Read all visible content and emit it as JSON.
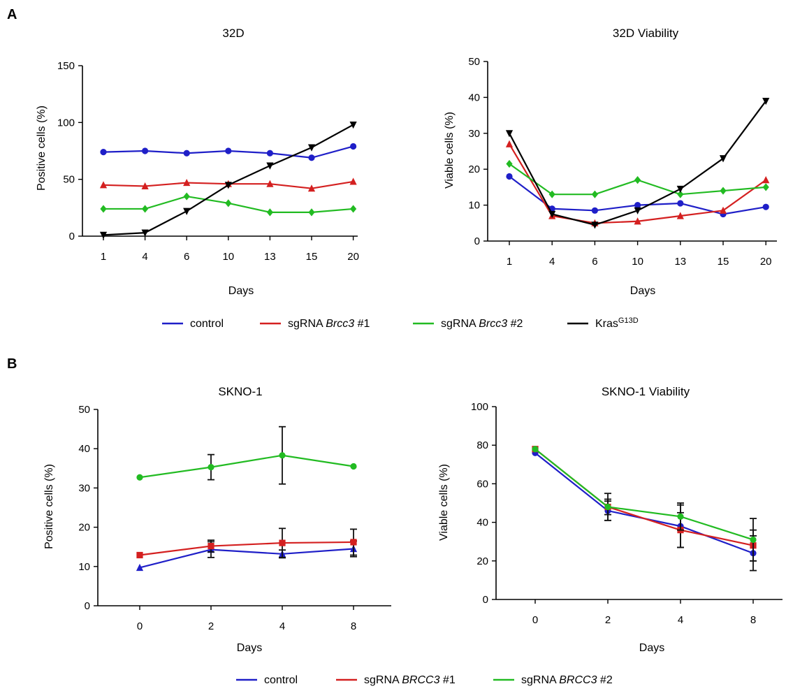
{
  "panels": {
    "a": "A",
    "b": "B"
  },
  "legends": {
    "a": [
      {
        "parts": [
          "control"
        ],
        "color": "#1f1fc8"
      },
      {
        "parts": [
          "sgRNA ",
          "Brcc3",
          " #1"
        ],
        "color": "#d42020"
      },
      {
        "parts": [
          "sgRNA ",
          "Brcc3",
          " #2"
        ],
        "color": "#22bb22"
      },
      {
        "parts": [
          "Kras",
          "G13D"
        ],
        "color": "#000000"
      }
    ],
    "b": [
      {
        "parts": [
          "control"
        ],
        "color": "#1f1fc8"
      },
      {
        "parts": [
          "sgRNA ",
          "BRCC3",
          " #1"
        ],
        "color": "#d42020"
      },
      {
        "parts": [
          "sgRNA ",
          "BRCC3",
          " #2"
        ],
        "color": "#22bb22"
      }
    ]
  },
  "chart_data": [
    {
      "type": "line",
      "title": "32D",
      "xlabel": "Days",
      "ylabel": "Positive cells (%)",
      "categories": [
        "1",
        "4",
        "6",
        "10",
        "13",
        "15",
        "20"
      ],
      "ylim": [
        0,
        150
      ],
      "yticks": [
        0,
        50,
        100,
        150
      ],
      "series": [
        {
          "name": "control",
          "color": "#1f1fc8",
          "marker": "circle",
          "values": [
            74,
            75,
            73,
            75,
            73,
            69,
            79
          ]
        },
        {
          "name": "sgRNA Brcc3 #1",
          "color": "#d42020",
          "marker": "triangle-up",
          "values": [
            45,
            44,
            47,
            46,
            46,
            42,
            48
          ]
        },
        {
          "name": "sgRNA Brcc3 #2",
          "color": "#22bb22",
          "marker": "diamond",
          "values": [
            24,
            24,
            35,
            29,
            21,
            21,
            24
          ]
        },
        {
          "name": "KrasG13D",
          "color": "#000000",
          "marker": "triangle-down",
          "values": [
            1,
            3,
            22,
            45,
            62,
            78,
            98
          ]
        }
      ]
    },
    {
      "type": "line",
      "title": "32D Viability",
      "xlabel": "Days",
      "ylabel": "Viable cells (%)",
      "categories": [
        "1",
        "4",
        "6",
        "10",
        "13",
        "15",
        "20"
      ],
      "ylim": [
        0,
        50
      ],
      "yticks": [
        0,
        10,
        20,
        30,
        40,
        50
      ],
      "series": [
        {
          "name": "control",
          "color": "#1f1fc8",
          "marker": "circle",
          "values": [
            18,
            9,
            8.5,
            10,
            10.5,
            7.5,
            9.5
          ]
        },
        {
          "name": "sgRNA Brcc3 #1",
          "color": "#d42020",
          "marker": "triangle-up",
          "values": [
            27,
            7,
            5,
            5.5,
            7,
            8.5,
            17
          ]
        },
        {
          "name": "sgRNA Brcc3 #2",
          "color": "#22bb22",
          "marker": "diamond",
          "values": [
            21.5,
            13,
            13,
            17,
            13,
            14,
            15
          ]
        },
        {
          "name": "KrasG13D",
          "color": "#000000",
          "marker": "triangle-down",
          "values": [
            30,
            7.5,
            4.5,
            8.5,
            14.5,
            23,
            39
          ]
        }
      ]
    },
    {
      "type": "line",
      "title": "SKNO-1",
      "xlabel": "Days",
      "ylabel": "Positive cells (%)",
      "categories": [
        "0",
        "2",
        "4",
        "8"
      ],
      "ylim": [
        0,
        50
      ],
      "yticks": [
        0,
        10,
        20,
        30,
        40,
        50
      ],
      "series": [
        {
          "name": "control",
          "color": "#1f1fc8",
          "marker": "triangle-up",
          "values": [
            9.7,
            14.3,
            13.2,
            14.5
          ],
          "err": [
            0,
            2.0,
            1.0,
            2.0
          ]
        },
        {
          "name": "sgRNA BRCC3 #1",
          "color": "#d42020",
          "marker": "square",
          "values": [
            12.9,
            15.2,
            16.0,
            16.2
          ],
          "err": [
            0,
            1.5,
            3.7,
            3.3
          ]
        },
        {
          "name": "sgRNA BRCC3 #2",
          "color": "#22bb22",
          "marker": "circle",
          "values": [
            32.7,
            35.3,
            38.3,
            35.5
          ],
          "err": [
            0,
            3.2,
            7.3,
            0
          ]
        }
      ]
    },
    {
      "type": "line",
      "title": "SKNO-1 Viability",
      "xlabel": "Days",
      "ylabel": "Viable cells (%)",
      "categories": [
        "0",
        "2",
        "4",
        "8"
      ],
      "ylim": [
        0,
        100
      ],
      "yticks": [
        0,
        20,
        40,
        60,
        80,
        100
      ],
      "series": [
        {
          "name": "control",
          "color": "#1f1fc8",
          "marker": "circle",
          "values": [
            76,
            46,
            38,
            24
          ],
          "err": [
            0,
            5,
            11,
            9
          ]
        },
        {
          "name": "sgRNA BRCC3 #1",
          "color": "#d42020",
          "marker": "square",
          "values": [
            78,
            48,
            36,
            28
          ],
          "err": [
            0,
            4,
            9,
            8
          ]
        },
        {
          "name": "sgRNA BRCC3 #2",
          "color": "#22bb22",
          "marker": "circle",
          "values": [
            78,
            48,
            43,
            31
          ],
          "err": [
            0,
            7,
            7,
            11
          ]
        }
      ]
    }
  ]
}
